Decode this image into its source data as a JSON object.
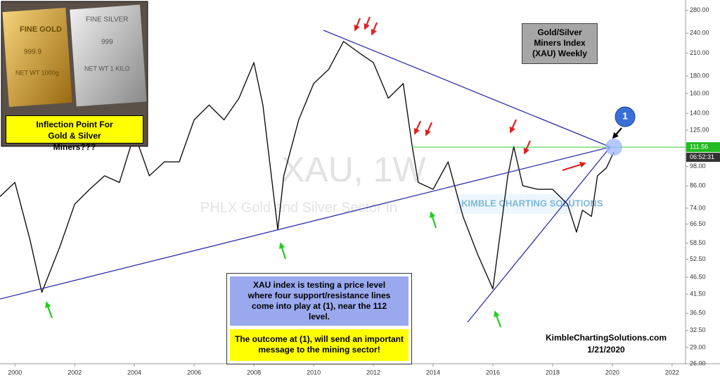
{
  "chart_data": {
    "type": "line",
    "watermark": "XAU, 1W",
    "watermark_subtitle": "PHLX Gold and Silver Sector In",
    "watermark_logo": "KIMBLE CHARTING SOLUTIONS",
    "title": "Gold/Silver Miners Index (XAU) Weekly",
    "inset_caption": "Inflection Point For Gold & Silver Miners???",
    "inset_texts": [
      "FINE GOLD",
      "999.9",
      "NET WT 1000g",
      "FINE SILVER",
      "999",
      "NET WT 1 KILO"
    ],
    "note_blue": "XAU index is testing a price level where four support/resistance lines come into play at (1), near the 112 level.",
    "note_yellow": "The outcome at (1), will send an important message to the mining sector!",
    "marker_label": "1",
    "credit": "KimbleChartingSolutions.com",
    "date": "1/21/2020",
    "countdown": "06:52:31",
    "price_line": {
      "value": 111.56,
      "label": "111.56"
    },
    "log_scale": true,
    "grid": false,
    "color": "#111111",
    "x": [
      1999.5,
      2000.0,
      2000.5,
      2000.9,
      2001.5,
      2002.0,
      2002.5,
      2003.0,
      2003.5,
      2004.0,
      2004.5,
      2005.0,
      2005.5,
      2006.0,
      2006.5,
      2007.0,
      2007.5,
      2008.0,
      2008.3,
      2008.8,
      2009.0,
      2009.5,
      2010.0,
      2010.5,
      2011.0,
      2011.5,
      2012.0,
      2012.5,
      2013.0,
      2013.3,
      2013.5,
      2014.0,
      2014.5,
      2015.0,
      2015.5,
      2016.0,
      2016.5,
      2016.7,
      2017.0,
      2017.5,
      2018.0,
      2018.5,
      2018.8,
      2019.0,
      2019.3,
      2019.5,
      2019.8,
      2020.05
    ],
    "values": [
      80,
      88,
      60,
      42,
      57,
      76,
      84,
      92,
      88,
      122,
      92,
      101,
      101,
      134,
      148,
      134,
      155,
      197,
      148,
      64,
      92,
      134,
      171,
      188,
      227,
      211,
      197,
      155,
      171,
      112,
      88,
      84,
      101,
      70,
      54,
      43,
      92,
      112,
      86,
      84,
      84,
      76,
      63,
      73,
      70,
      92,
      97,
      108
    ],
    "xlim": [
      1999.5,
      2022.45
    ],
    "xticks": [
      2000,
      2002,
      2004,
      2006,
      2008,
      2010,
      2012,
      2014,
      2016,
      2018,
      2020,
      2022
    ],
    "ylim": [
      26,
      300
    ],
    "yticks": [
      {
        "value": 26,
        "label": "26.00"
      },
      {
        "value": 29,
        "label": "29.00"
      },
      {
        "value": 32.5,
        "label": "32.50"
      },
      {
        "value": 36.5,
        "label": "36.50"
      },
      {
        "value": 41.5,
        "label": "41.50"
      },
      {
        "value": 46.5,
        "label": "46.50"
      },
      {
        "value": 52.5,
        "label": "52.50"
      },
      {
        "value": 58.5,
        "label": "58.50"
      },
      {
        "value": 66.5,
        "label": "66.50"
      },
      {
        "value": 74,
        "label": "74.00"
      },
      {
        "value": 86,
        "label": "86.00"
      },
      {
        "value": 98,
        "label": "98.00"
      },
      {
        "value": 125,
        "label": "125.00"
      },
      {
        "value": 140,
        "label": "140.00"
      },
      {
        "value": 160,
        "label": "160.00"
      },
      {
        "value": 180,
        "label": "180.00"
      },
      {
        "value": 210,
        "label": "210.00"
      },
      {
        "value": 240,
        "label": "240.00"
      },
      {
        "value": 280,
        "label": "280.00"
      }
    ]
  }
}
